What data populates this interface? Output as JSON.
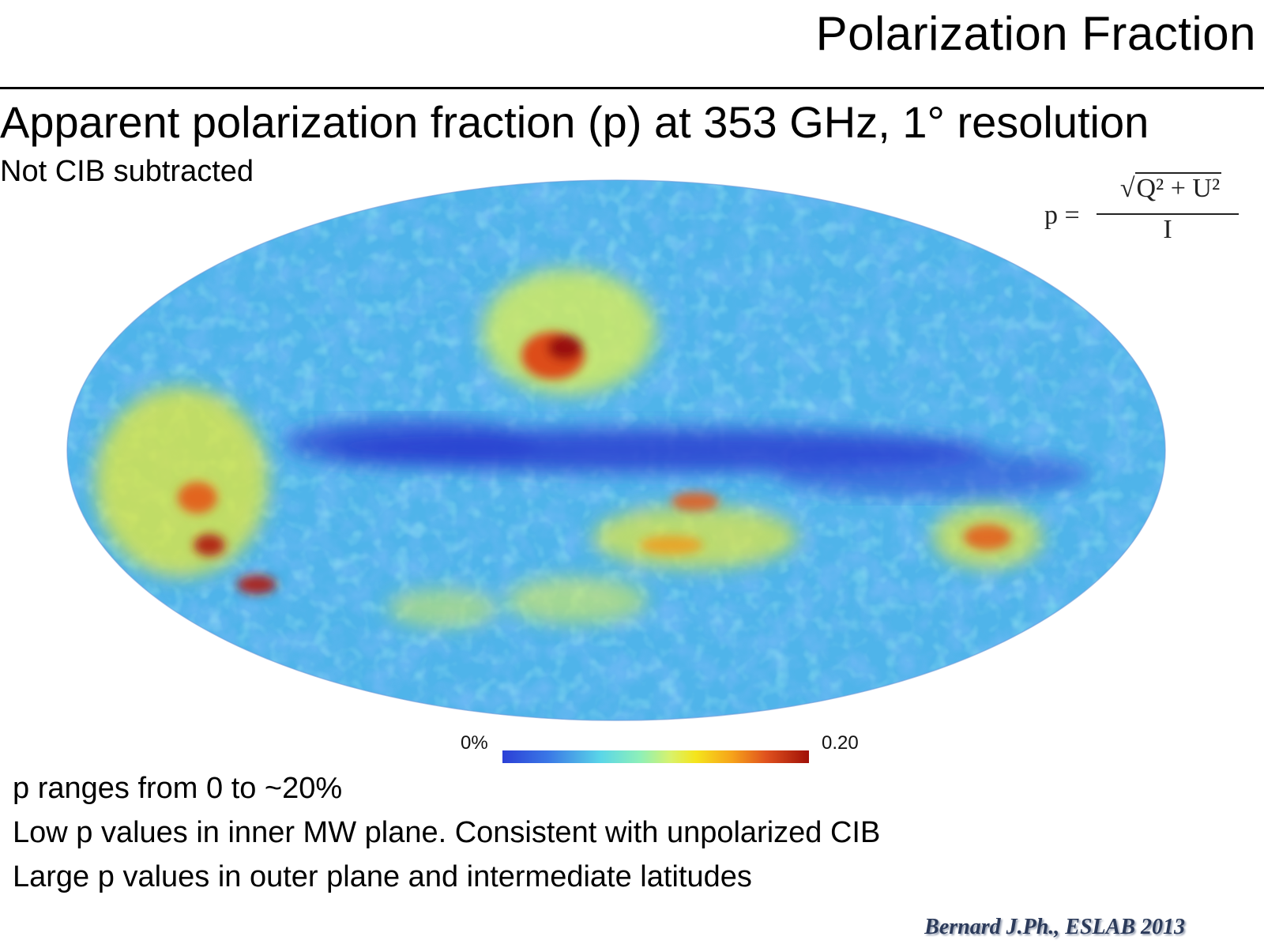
{
  "slide": {
    "title": "Polarization Fraction",
    "headline": "Apparent polarization fraction (p) at 353 GHz, 1° resolution",
    "subheadline": "Not CIB subtracted",
    "formula": {
      "lhs": "p =",
      "numerator": "Q² + U²",
      "denominator": "I"
    },
    "colorbar": {
      "min_label": "0%",
      "max_label": "0.20"
    },
    "bullets": [
      "p ranges from 0 to ~20%",
      "Low p values in inner MW plane. Consistent with unpolarized CIB",
      "Large p values in outer plane and intermediate latitudes"
    ],
    "citation": "Bernard J.Ph.,  ESLAB 2013"
  },
  "colors": {
    "low": "#2b3fd6",
    "mid_low": "#5ad6e8",
    "mid": "#f5e51c",
    "high": "#a01008"
  }
}
